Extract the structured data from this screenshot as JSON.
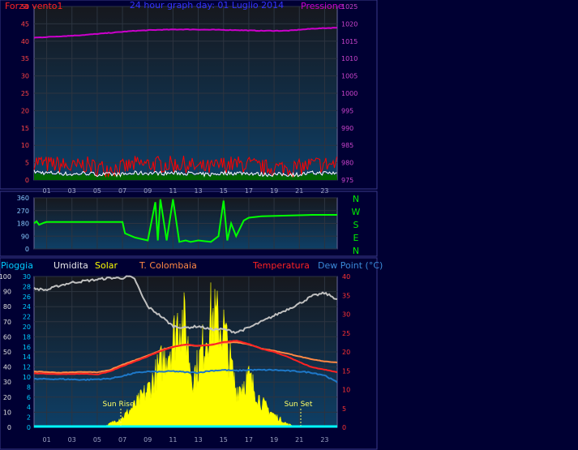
{
  "header": {
    "wind_title": "Forza vento1",
    "date_title": "24 hour graph day:  01 Luglio 2014",
    "pressure_title": "Pressione"
  },
  "sun": {
    "rise_label": "Sun Rise",
    "set_label": "Sun Set"
  },
  "compass": [
    "N",
    "W",
    "S",
    "E",
    "N"
  ],
  "bottom_legend": {
    "rain": "Pioggia",
    "humidity": "Umidita",
    "solar": "Solar",
    "station": "T. Colombaia",
    "temperature": "Temperatura",
    "dewpoint": "Dew Point (°C)"
  },
  "colors": {
    "background": "#000033",
    "wind_gust": "#ff0000",
    "wind_avg": "#ffffff",
    "wind_area": "#006600",
    "pressure": "#cc00cc",
    "direction": "#00ff00",
    "humidity": "#c0c0c0",
    "solar": "#ffff00",
    "temperature": "#ff2222",
    "station": "#ff8844",
    "dewpoint": "#1e78c8",
    "rain": "#00ffff"
  },
  "x_ticks": [
    "01",
    "03",
    "05",
    "07",
    "09",
    "11",
    "13",
    "15",
    "17",
    "19",
    "21",
    "23"
  ],
  "chart_data": [
    {
      "type": "line",
      "name": "wind-pressure",
      "x_ticks": [
        "01",
        "03",
        "05",
        "07",
        "09",
        "11",
        "13",
        "15",
        "17",
        "19",
        "21",
        "23"
      ],
      "y_left_ticks": [
        0,
        5,
        10,
        15,
        20,
        25,
        30,
        35,
        40,
        45,
        50
      ],
      "y_right_ticks": [
        975,
        980,
        985,
        990,
        995,
        1000,
        1005,
        1010,
        1015,
        1020,
        1025
      ],
      "ylim_left": [
        0,
        50
      ],
      "ylim_right": [
        975,
        1025
      ],
      "series": [
        {
          "name": "Forza vento1",
          "hours": [
            0,
            1,
            2,
            3,
            4,
            5,
            6,
            7,
            8,
            9,
            10,
            11,
            12,
            13,
            14,
            15,
            16,
            17,
            18,
            19,
            20,
            21,
            22,
            23,
            24
          ],
          "values": [
            6,
            5,
            5,
            4,
            5,
            4,
            4,
            4,
            5,
            5,
            5,
            5,
            5,
            4,
            4,
            5,
            5,
            5,
            4,
            4,
            4,
            4,
            5,
            5,
            5
          ]
        },
        {
          "name": "Pressione",
          "hours": [
            0,
            2,
            4,
            6,
            8,
            10,
            12,
            14,
            16,
            18,
            20,
            22,
            24
          ],
          "values": [
            1016.0,
            1016.4,
            1016.8,
            1017.4,
            1018.0,
            1018.3,
            1018.4,
            1018.3,
            1018.2,
            1018.0,
            1018.0,
            1018.6,
            1018.9
          ]
        }
      ]
    },
    {
      "type": "line",
      "name": "wind-direction",
      "y_ticks": [
        0,
        90,
        180,
        270,
        360
      ],
      "ylim": [
        0,
        360
      ],
      "series": [
        {
          "hours": [
            0,
            0.2,
            0.4,
            0.8,
            1.0,
            2.0,
            4.0,
            6.0,
            7.0,
            7.2,
            8.0,
            9.0,
            9.6,
            9.8,
            10.0,
            10.5,
            11.0,
            11.5,
            12.0,
            12.4,
            13.0,
            14.0,
            14.6,
            15.0,
            15.3,
            15.6,
            16.0,
            16.6,
            17.0,
            18.0,
            20.0,
            22.0,
            24.0
          ],
          "values": [
            180,
            195,
            170,
            185,
            190,
            190,
            190,
            190,
            190,
            110,
            80,
            60,
            330,
            60,
            350,
            60,
            350,
            50,
            60,
            50,
            60,
            50,
            90,
            340,
            60,
            180,
            90,
            200,
            220,
            230,
            235,
            240,
            240
          ]
        }
      ]
    },
    {
      "type": "line",
      "name": "temperature-humidity-solar",
      "y_left_ticks": [
        0,
        10,
        20,
        30,
        40,
        50,
        60,
        70,
        80,
        90,
        100
      ],
      "y_left2_ticks": [
        0,
        2,
        4,
        6,
        8,
        10,
        12,
        14,
        16,
        18,
        20,
        22,
        24,
        26,
        28,
        30
      ],
      "y_right_ticks": [
        0,
        5,
        10,
        15,
        20,
        25,
        30,
        35,
        40
      ],
      "ylim_humidity": [
        0,
        100
      ],
      "ylim_temperature": [
        0,
        40
      ],
      "series": [
        {
          "name": "Umidita",
          "hours": [
            0,
            1,
            2,
            3,
            4,
            5,
            6,
            7,
            7.5,
            8,
            8.5,
            9,
            10,
            11,
            12,
            13,
            14,
            15,
            16,
            17,
            18,
            19,
            20,
            21,
            22,
            23,
            23.5,
            24
          ],
          "values": [
            92,
            91,
            94,
            96,
            97,
            98,
            99,
            99,
            100,
            98,
            88,
            80,
            74,
            67,
            66,
            67,
            65,
            65,
            63,
            66,
            70,
            74,
            78,
            82,
            87,
            89,
            87,
            85
          ]
        },
        {
          "name": "Solar",
          "hours": [
            0,
            5.5,
            6,
            7,
            8,
            9,
            10,
            11,
            11.5,
            12,
            12.5,
            13,
            14,
            15,
            16,
            17,
            18,
            19,
            20,
            21,
            22,
            24
          ],
          "values": [
            0,
            0,
            3,
            8,
            18,
            30,
            50,
            70,
            90,
            80,
            40,
            50,
            90,
            80,
            30,
            40,
            20,
            10,
            3,
            0,
            0,
            0
          ]
        },
        {
          "name": "Temperatura",
          "hours": [
            0,
            2,
            4,
            5,
            6,
            7,
            8,
            9,
            10,
            11,
            12,
            13,
            14,
            15,
            16,
            17,
            18,
            19,
            20,
            21,
            22,
            23,
            24
          ],
          "values": [
            14.3,
            14.1,
            14.2,
            14.0,
            14.8,
            16.2,
            17.5,
            18.8,
            20.2,
            21.3,
            22.0,
            21.6,
            21.8,
            22.6,
            23.0,
            22.1,
            20.8,
            20.0,
            18.8,
            17.3,
            15.9,
            15.3,
            14.6
          ]
        },
        {
          "name": "T. Colombaia",
          "hours": [
            0,
            2,
            4,
            5,
            6,
            7,
            8,
            9,
            10,
            11,
            12,
            13,
            14,
            15,
            16,
            17,
            18,
            19,
            20,
            21,
            22,
            23,
            24
          ],
          "values": [
            14.8,
            14.5,
            14.7,
            14.6,
            15.2,
            16.6,
            17.8,
            19.0,
            20.4,
            21.4,
            21.8,
            21.6,
            22.0,
            22.4,
            22.6,
            22.0,
            20.9,
            20.3,
            19.6,
            18.8,
            18.0,
            17.5,
            17.2
          ]
        },
        {
          "name": "Dew Point (°C)",
          "hours": [
            0,
            2,
            4,
            6,
            7,
            8,
            9,
            10,
            11,
            12,
            13,
            14,
            15,
            16,
            17,
            18,
            19,
            20,
            21,
            22,
            23,
            24
          ],
          "values": [
            12.8,
            12.8,
            12.6,
            12.9,
            13.6,
            14.4,
            14.8,
            14.7,
            14.9,
            14.6,
            14.5,
            15.0,
            15.2,
            15.0,
            15.2,
            15.2,
            15.2,
            15.0,
            14.8,
            14.5,
            13.8,
            11.9
          ]
        },
        {
          "name": "Pioggia",
          "hours": [
            0,
            24
          ],
          "values": [
            0,
            0
          ]
        }
      ]
    }
  ]
}
